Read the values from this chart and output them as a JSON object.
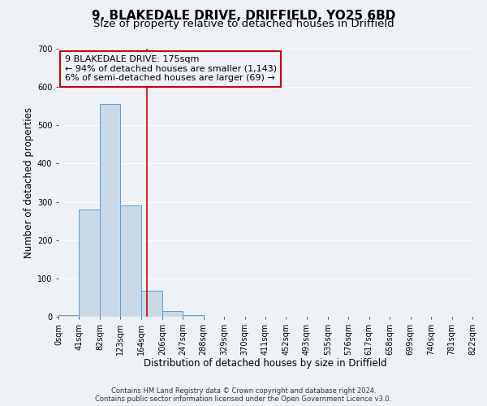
{
  "title": "9, BLAKEDALE DRIVE, DRIFFIELD, YO25 6BD",
  "subtitle": "Size of property relative to detached houses in Driffield",
  "xlabel": "Distribution of detached houses by size in Driffield",
  "ylabel": "Number of detached properties",
  "bin_edges": [
    0,
    41,
    82,
    123,
    164,
    206,
    247,
    288,
    329,
    370,
    411,
    452,
    493,
    535,
    576,
    617,
    658,
    699,
    740,
    781,
    822
  ],
  "bin_counts": [
    5,
    280,
    555,
    290,
    68,
    15,
    5,
    0,
    0,
    0,
    0,
    0,
    0,
    0,
    0,
    0,
    0,
    0,
    0,
    0
  ],
  "bar_color": "#c9d9e8",
  "bar_edge_color": "#5b9bd5",
  "property_size": 175,
  "vline_color": "#cc0000",
  "annotation_text": "9 BLAKEDALE DRIVE: 175sqm\n← 94% of detached houses are smaller (1,143)\n6% of semi-detached houses are larger (69) →",
  "annotation_box_edge_color": "#cc0000",
  "ylim": [
    0,
    700
  ],
  "yticks": [
    0,
    100,
    200,
    300,
    400,
    500,
    600,
    700
  ],
  "footer_line1": "Contains HM Land Registry data © Crown copyright and database right 2024.",
  "footer_line2": "Contains public sector information licensed under the Open Government Licence v3.0.",
  "tick_labels": [
    "0sqm",
    "41sqm",
    "82sqm",
    "123sqm",
    "164sqm",
    "206sqm",
    "247sqm",
    "288sqm",
    "329sqm",
    "370sqm",
    "411sqm",
    "452sqm",
    "493sqm",
    "535sqm",
    "576sqm",
    "617sqm",
    "658sqm",
    "699sqm",
    "740sqm",
    "781sqm",
    "822sqm"
  ],
  "background_color": "#eef2f7",
  "grid_color": "#ffffff",
  "title_fontsize": 11,
  "subtitle_fontsize": 9.5,
  "axis_label_fontsize": 8.5,
  "tick_fontsize": 7,
  "annotation_fontsize": 8,
  "footer_fontsize": 6
}
